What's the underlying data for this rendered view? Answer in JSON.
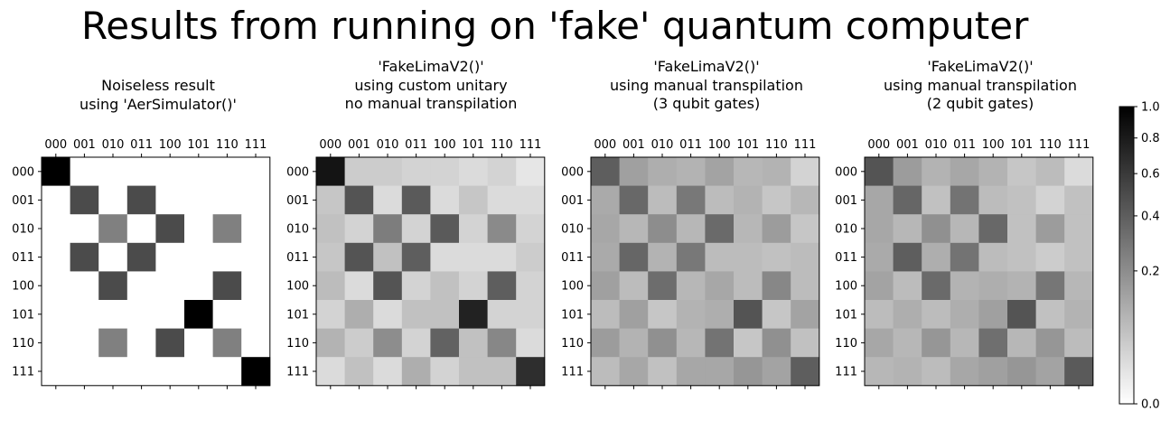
{
  "suptitle": "Results from running on 'fake' quantum computer",
  "chart_data": {
    "type": "heatmap",
    "colormap": "gray_r",
    "labels": [
      "000",
      "001",
      "010",
      "011",
      "100",
      "101",
      "110",
      "111"
    ],
    "x_tick_position": "top",
    "colorbar": {
      "range": [
        0.0,
        1.0
      ],
      "scale": "power (nonlinear)",
      "ticks": [
        "1.0",
        "0.8",
        "0.6",
        "0.4",
        "0.2",
        "0.0"
      ],
      "tick_values": [
        1.0,
        0.8,
        0.6,
        0.4,
        0.2,
        0.0
      ]
    },
    "panels": [
      {
        "title": "Noiseless result\nusing 'AerSimulator()'",
        "values": [
          [
            1.0,
            0.0,
            0.0,
            0.0,
            0.0,
            0.0,
            0.0,
            0.0
          ],
          [
            0.0,
            0.5,
            0.0,
            0.5,
            0.0,
            0.0,
            0.0,
            0.0
          ],
          [
            0.0,
            0.0,
            0.25,
            0.0,
            0.5,
            0.0,
            0.25,
            0.0
          ],
          [
            0.0,
            0.5,
            0.0,
            0.5,
            0.0,
            0.0,
            0.0,
            0.0
          ],
          [
            0.0,
            0.0,
            0.5,
            0.0,
            0.0,
            0.0,
            0.5,
            0.0
          ],
          [
            0.0,
            0.0,
            0.0,
            0.0,
            0.0,
            1.0,
            0.0,
            0.0
          ],
          [
            0.0,
            0.0,
            0.25,
            0.0,
            0.5,
            0.0,
            0.25,
            0.0
          ],
          [
            0.0,
            0.0,
            0.0,
            0.0,
            0.0,
            0.0,
            0.0,
            1.0
          ]
        ]
      },
      {
        "title": "'FakeLimaV2()'\nusing custom unitary\nno manual transpilation",
        "values": [
          [
            0.85,
            0.04,
            0.04,
            0.03,
            0.03,
            0.02,
            0.03,
            0.01
          ],
          [
            0.05,
            0.45,
            0.02,
            0.42,
            0.02,
            0.05,
            0.02,
            0.02
          ],
          [
            0.06,
            0.03,
            0.26,
            0.03,
            0.42,
            0.03,
            0.21,
            0.03
          ],
          [
            0.05,
            0.45,
            0.06,
            0.4,
            0.02,
            0.02,
            0.02,
            0.04
          ],
          [
            0.07,
            0.02,
            0.45,
            0.03,
            0.06,
            0.03,
            0.4,
            0.03
          ],
          [
            0.03,
            0.1,
            0.02,
            0.06,
            0.06,
            0.75,
            0.03,
            0.03
          ],
          [
            0.09,
            0.04,
            0.2,
            0.03,
            0.38,
            0.06,
            0.22,
            0.02
          ],
          [
            0.02,
            0.06,
            0.02,
            0.1,
            0.03,
            0.06,
            0.06,
            0.67
          ]
        ]
      },
      {
        "title": "'FakeLimaV2()'\nusing manual transpilation\n(3 qubit gates)",
        "values": [
          [
            0.4,
            0.14,
            0.1,
            0.09,
            0.13,
            0.08,
            0.09,
            0.03
          ],
          [
            0.11,
            0.35,
            0.07,
            0.28,
            0.07,
            0.09,
            0.05,
            0.08
          ],
          [
            0.12,
            0.08,
            0.2,
            0.08,
            0.34,
            0.08,
            0.15,
            0.05
          ],
          [
            0.11,
            0.36,
            0.09,
            0.28,
            0.07,
            0.07,
            0.06,
            0.07
          ],
          [
            0.14,
            0.07,
            0.33,
            0.08,
            0.12,
            0.07,
            0.22,
            0.07
          ],
          [
            0.07,
            0.14,
            0.05,
            0.09,
            0.1,
            0.45,
            0.05,
            0.13
          ],
          [
            0.15,
            0.09,
            0.19,
            0.08,
            0.3,
            0.05,
            0.19,
            0.06
          ],
          [
            0.07,
            0.12,
            0.06,
            0.12,
            0.12,
            0.17,
            0.13,
            0.4
          ]
        ]
      },
      {
        "title": "'FakeLimaV2()'\nusing manual transpilation\n(2 qubit gates)",
        "values": [
          [
            0.45,
            0.15,
            0.09,
            0.12,
            0.09,
            0.05,
            0.07,
            0.02
          ],
          [
            0.12,
            0.36,
            0.06,
            0.3,
            0.07,
            0.06,
            0.03,
            0.06
          ],
          [
            0.12,
            0.08,
            0.19,
            0.08,
            0.35,
            0.06,
            0.15,
            0.06
          ],
          [
            0.11,
            0.4,
            0.1,
            0.3,
            0.07,
            0.06,
            0.04,
            0.06
          ],
          [
            0.13,
            0.07,
            0.34,
            0.09,
            0.1,
            0.09,
            0.29,
            0.08
          ],
          [
            0.07,
            0.1,
            0.07,
            0.1,
            0.14,
            0.45,
            0.06,
            0.09
          ],
          [
            0.12,
            0.08,
            0.17,
            0.08,
            0.32,
            0.08,
            0.17,
            0.07
          ],
          [
            0.08,
            0.09,
            0.07,
            0.12,
            0.14,
            0.17,
            0.13,
            0.42
          ]
        ]
      }
    ]
  }
}
